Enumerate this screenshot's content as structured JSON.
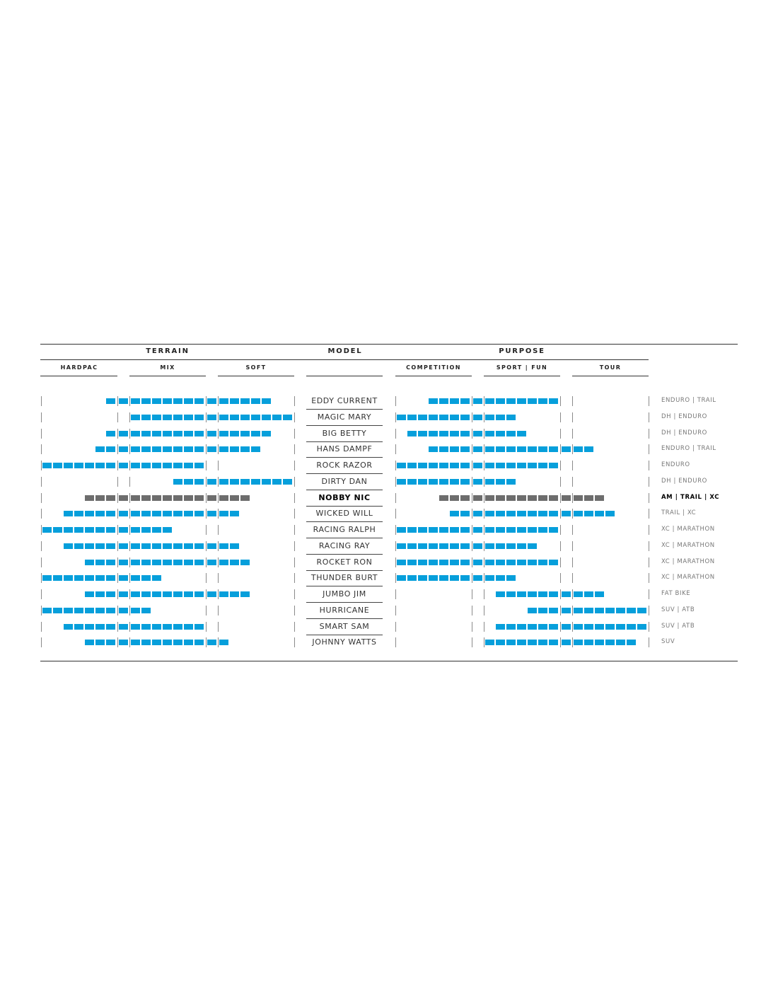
{
  "chart_data": {
    "type": "table",
    "title": "",
    "headers": {
      "terrain": "TERRAIN",
      "model": "MODEL",
      "purpose": "PURPOSE"
    },
    "terrain_subheaders": [
      "HARDPAC",
      "MIX",
      "SOFT"
    ],
    "purpose_subheaders": [
      "COMPETITION",
      "SPORT | FUN",
      "TOUR"
    ],
    "scale_slots": 23,
    "colors": {
      "range": "#069fdb",
      "highlight": "#6d6d6d"
    },
    "rows": [
      {
        "model": "EDDY CURRENT",
        "terrain": [
          6,
          20
        ],
        "purpose": [
          3,
          14
        ],
        "usage": "ENDURO | TRAIL",
        "highlight": false
      },
      {
        "model": "MAGIC MARY",
        "terrain": [
          8,
          22
        ],
        "purpose": [
          0,
          10
        ],
        "usage": "DH | ENDURO",
        "highlight": false
      },
      {
        "model": "BIG BETTY",
        "terrain": [
          6,
          20
        ],
        "purpose": [
          1,
          11
        ],
        "usage": "DH | ENDURO",
        "highlight": false
      },
      {
        "model": "HANS DAMPF",
        "terrain": [
          5,
          19
        ],
        "purpose": [
          3,
          17
        ],
        "usage": "ENDURO | TRAIL",
        "highlight": false
      },
      {
        "model": "ROCK RAZOR",
        "terrain": [
          0,
          14
        ],
        "purpose": [
          0,
          14
        ],
        "usage": "ENDURO",
        "highlight": false
      },
      {
        "model": "DIRTY DAN",
        "terrain": [
          12,
          22
        ],
        "purpose": [
          0,
          10
        ],
        "usage": "DH | ENDURO",
        "highlight": false
      },
      {
        "model": "NOBBY NIC",
        "terrain": [
          4,
          18
        ],
        "purpose": [
          4,
          18
        ],
        "usage": "AM | TRAIL | XC",
        "highlight": true
      },
      {
        "model": "WICKED WILL",
        "terrain": [
          2,
          17
        ],
        "purpose": [
          5,
          19
        ],
        "usage": "TRAIL | XC",
        "highlight": false
      },
      {
        "model": "RACING RALPH",
        "terrain": [
          0,
          11
        ],
        "purpose": [
          0,
          14
        ],
        "usage": "XC | MARATHON",
        "highlight": false
      },
      {
        "model": "RACING RAY",
        "terrain": [
          2,
          17
        ],
        "purpose": [
          0,
          12
        ],
        "usage": "XC | MARATHON",
        "highlight": false
      },
      {
        "model": "ROCKET RON",
        "terrain": [
          4,
          18
        ],
        "purpose": [
          0,
          14
        ],
        "usage": "XC | MARATHON",
        "highlight": false
      },
      {
        "model": "THUNDER BURT",
        "terrain": [
          0,
          10
        ],
        "purpose": [
          0,
          10
        ],
        "usage": "XC | MARATHON",
        "highlight": false
      },
      {
        "model": "JUMBO JIM",
        "terrain": [
          4,
          18
        ],
        "purpose": [
          9,
          18
        ],
        "usage": "FAT BIKE",
        "highlight": false
      },
      {
        "model": "HURRICANE",
        "terrain": [
          0,
          9
        ],
        "purpose": [
          12,
          22
        ],
        "usage": "SUV | ATB",
        "highlight": false
      },
      {
        "model": "SMART SAM",
        "terrain": [
          2,
          14
        ],
        "purpose": [
          9,
          22
        ],
        "usage": "SUV | ATB",
        "highlight": false
      },
      {
        "model": "JOHNNY WATTS",
        "terrain": [
          4,
          16
        ],
        "purpose": [
          8,
          21
        ],
        "usage": "SUV",
        "highlight": false
      }
    ]
  }
}
